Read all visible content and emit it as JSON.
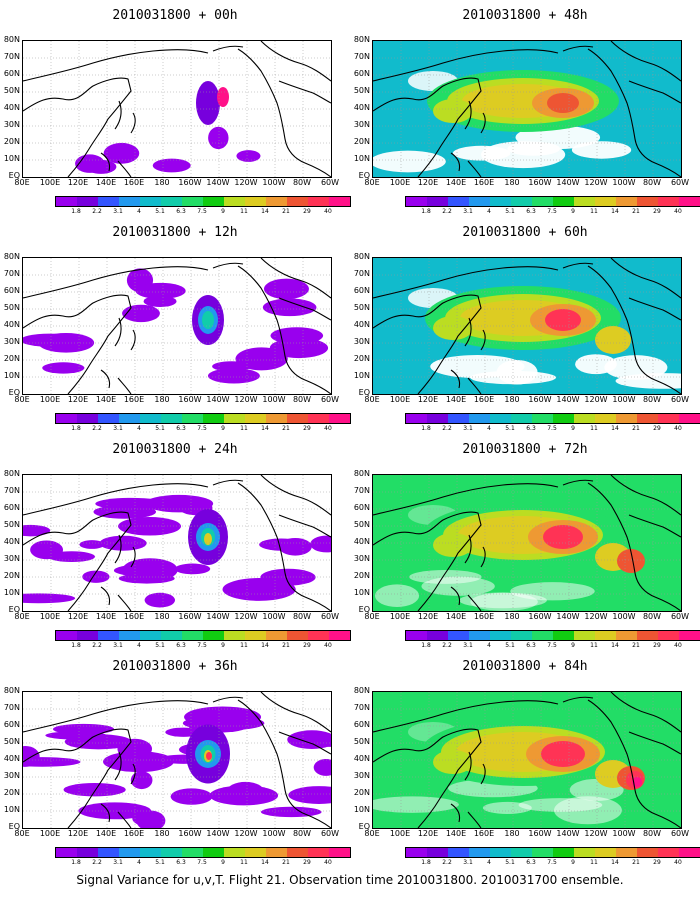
{
  "panels": [
    {
      "title": "2010031800 + 00h",
      "intensity": 0
    },
    {
      "title": "2010031800 + 48h",
      "intensity": 3
    },
    {
      "title": "2010031800 + 12h",
      "intensity": 1
    },
    {
      "title": "2010031800 + 60h",
      "intensity": 4
    },
    {
      "title": "2010031800 + 24h",
      "intensity": 2
    },
    {
      "title": "2010031800 + 72h",
      "intensity": 5
    },
    {
      "title": "2010031800 + 36h",
      "intensity": 2.5
    },
    {
      "title": "2010031800 + 84h",
      "intensity": 6
    }
  ],
  "lat_labels": [
    "80N",
    "70N",
    "60N",
    "50N",
    "40N",
    "30N",
    "20N",
    "10N",
    "EQ"
  ],
  "lon_labels": [
    "80E",
    "100E",
    "120E",
    "140E",
    "160E",
    "180",
    "160W",
    "140W",
    "120W",
    "100W",
    "80W",
    "60W"
  ],
  "colorbar": {
    "labels": [
      "1.8",
      "2.2",
      "3.1",
      "4",
      "5.1",
      "6.3",
      "7.5",
      "9",
      "11",
      "14",
      "21",
      "29",
      "40"
    ],
    "colors": [
      "#9900ee",
      "#7700dd",
      "#3355ff",
      "#2299ee",
      "#11bbcc",
      "#11ccaa",
      "#22dd66",
      "#11cc11",
      "#bbdd22",
      "#ddcc22",
      "#ee9933",
      "#ee5533",
      "#ff3355",
      "#ff1188"
    ]
  },
  "caption": "Signal Variance for u,v,T. Flight 21. Observation time 2010031800. 2010031700 ensemble."
}
